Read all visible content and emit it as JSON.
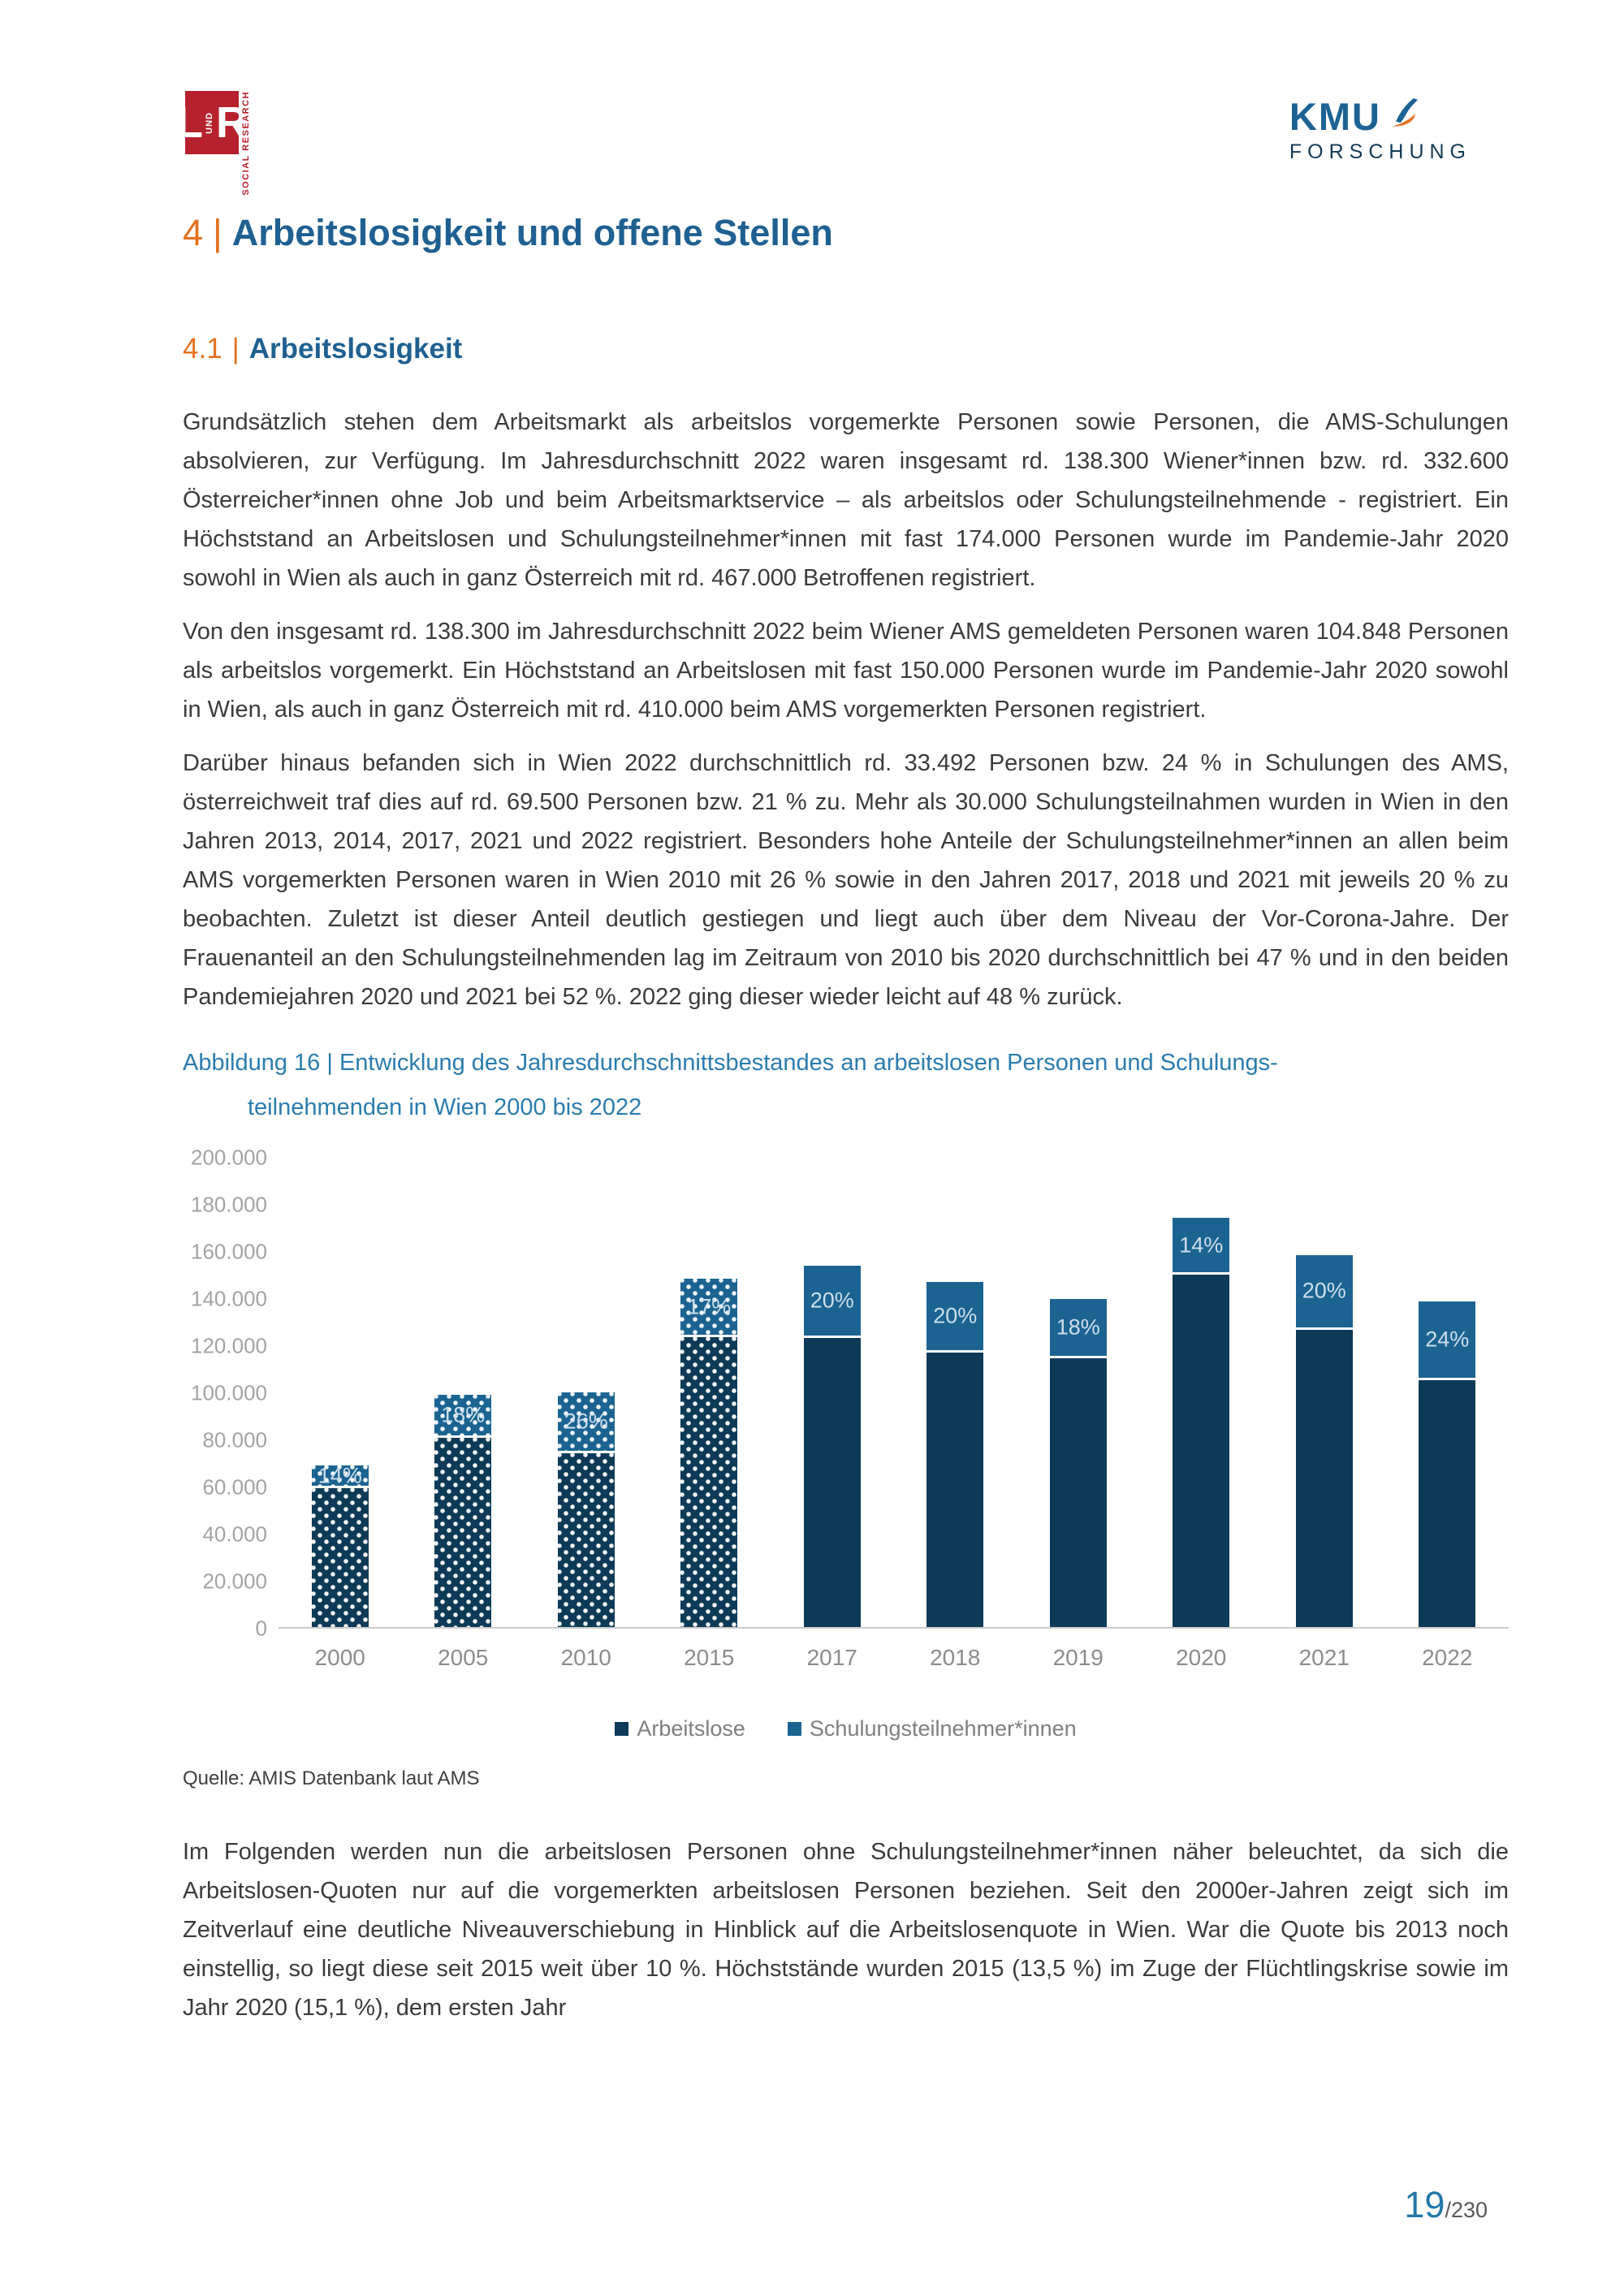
{
  "header": {
    "logo_lr": {
      "l": "L",
      "und": "UND",
      "r": "R",
      "side": "SOCIAL RESEARCH"
    },
    "logo_kmu": {
      "word": "KMU",
      "sub": "FORSCHUNG"
    }
  },
  "section": {
    "number": "4",
    "separator": "|",
    "title": "Arbeitslosigkeit und offene Stellen"
  },
  "subsection": {
    "number": "4.1",
    "separator": "|",
    "title": "Arbeitslosigkeit"
  },
  "paragraphs": {
    "p1": "Grundsätzlich stehen dem Arbeitsmarkt als arbeitslos vorgemerkte Personen sowie Personen, die AMS-Schulungen absolvieren, zur Verfügung. Im Jahresdurchschnitt 2022 waren insgesamt rd. 138.300 Wiener*innen bzw. rd. 332.600 Österreicher*innen ohne Job und beim Arbeitsmarktservice – als arbeitslos oder Schulungsteilnehmende - registriert. Ein Höchststand an Arbeitslosen und Schulungsteilnehmer*innen mit fast 174.000 Personen wurde im Pandemie-Jahr 2020 sowohl in Wien als auch in ganz Österreich mit rd. 467.000 Betroffenen registriert.",
    "p2": "Von den insgesamt rd. 138.300 im Jahresdurchschnitt 2022 beim Wiener AMS gemeldeten Personen waren 104.848 Personen als arbeitslos vorgemerkt. Ein Höchststand an Arbeitslosen mit fast 150.000 Personen wurde im Pandemie-Jahr 2020 sowohl in Wien, als auch in ganz Österreich mit rd. 410.000 beim AMS vorgemerkten Personen registriert.",
    "p3": "Darüber hinaus befanden sich in Wien 2022 durchschnittlich rd. 33.492 Personen bzw. 24 % in Schulungen des AMS, österreichweit traf dies auf rd. 69.500 Personen bzw. 21 % zu. Mehr als 30.000 Schulungsteilnahmen wurden in Wien in den Jahren 2013, 2014, 2017, 2021 und 2022 registriert. Besonders hohe Anteile der Schulungsteilnehmer*innen an allen beim AMS vorgemerkten Personen waren in Wien 2010 mit 26 % sowie in den Jahren 2017, 2018 und 2021 mit jeweils 20 % zu beobachten. Zuletzt ist dieser Anteil deutlich gestiegen und liegt auch über dem Niveau der Vor-Corona-Jahre. Der Frauenanteil an den Schulungsteilnehmenden lag im Zeitraum von 2010 bis 2020 durchschnittlich bei 47 % und in den beiden Pandemiejahren 2020 und 2021 bei 52 %. 2022 ging dieser wieder leicht auf 48 % zurück.",
    "closing": "Im Folgenden werden nun die arbeitslosen Personen ohne Schulungsteilnehmer*innen näher beleuchtet, da sich die Arbeitslosen-Quoten nur auf die vorgemerkten arbeitslosen Personen beziehen. Seit den 2000er-Jahren zeigt sich im Zeitverlauf eine deutliche Niveauverschiebung in Hinblick auf die Arbeitslosenquote in Wien. War die Quote bis 2013 noch einstellig, so liegt diese seit 2015 weit über 10 %. Höchststände wurden 2015 (13,5 %) im Zuge der Flüchtlingskrise sowie im Jahr 2020 (15,1 %), dem ersten Jahr"
  },
  "figure": {
    "caption_line1": "Abbildung 16 | Entwicklung des Jahresdurchschnittsbestandes an arbeitslosen Personen und Schulungs-",
    "caption_line2": "teilnehmenden in Wien 2000 bis 2022",
    "source": "Quelle: AMIS Datenbank laut AMS"
  },
  "chart_data": {
    "type": "bar",
    "stacked": true,
    "title": "Entwicklung des Jahresdurchschnittsbestandes an arbeitslosen Personen und Schulungsteilnehmenden in Wien 2000 bis 2022",
    "categories": [
      "2000",
      "2005",
      "2010",
      "2015",
      "2017",
      "2018",
      "2019",
      "2020",
      "2021",
      "2022"
    ],
    "series": [
      {
        "name": "Arbeitslose",
        "color": "#0d3a57",
        "values": [
          59000,
          80500,
          73700,
          123000,
          122800,
          116400,
          114000,
          149600,
          126300,
          104848
        ]
      },
      {
        "name": "Schulungsteilnehmer*innen",
        "color": "#1b6492",
        "values": [
          9500,
          18000,
          25800,
          25000,
          30700,
          30000,
          25300,
          24100,
          31600,
          33492
        ]
      }
    ],
    "percent_labels": [
      "14%",
      "18%",
      "26%",
      "17%",
      "20%",
      "20%",
      "18%",
      "14%",
      "20%",
      "24%"
    ],
    "patterned_categories": [
      "2000",
      "2005",
      "2010",
      "2015"
    ],
    "y_ticks": [
      "200.000",
      "180.000",
      "160.000",
      "140.000",
      "120.000",
      "100.000",
      "80.000",
      "60.000",
      "40.000",
      "20.000",
      "0"
    ],
    "ylim": [
      0,
      200000
    ],
    "grid": false,
    "legend_position": "bottom"
  },
  "page_footer": {
    "page": "19",
    "total": "/230"
  }
}
